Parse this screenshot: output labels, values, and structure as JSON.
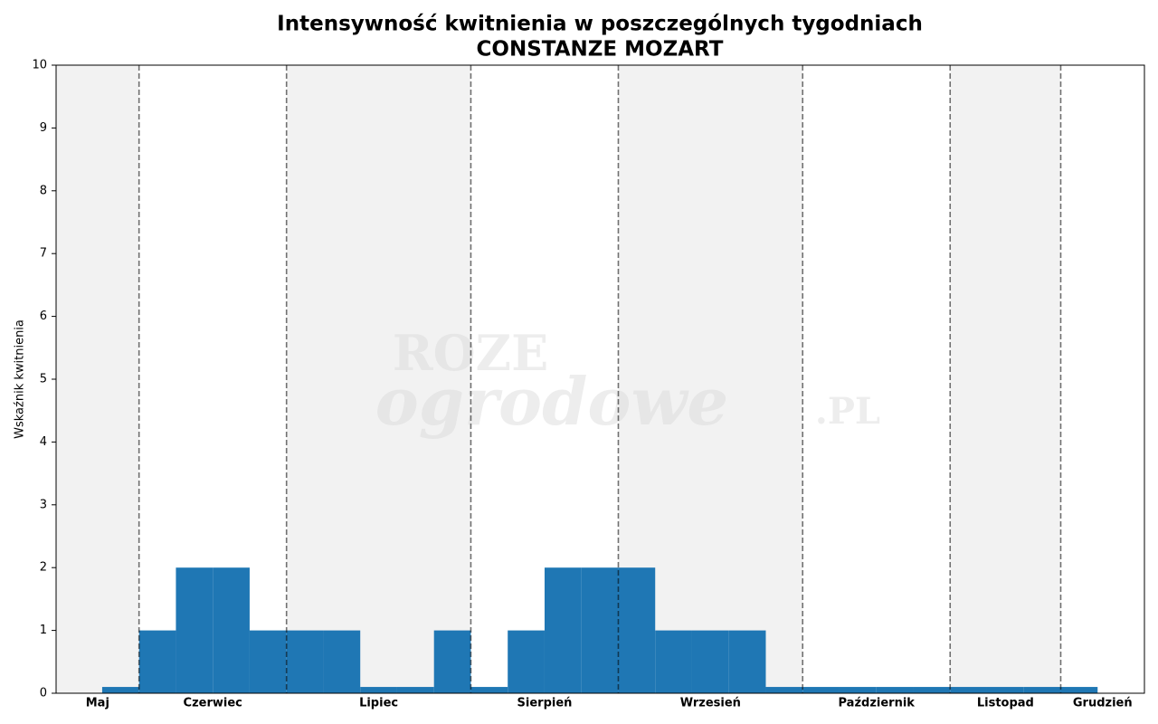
{
  "chart_data": {
    "type": "histogram",
    "title": "Intensywność kwitnienia w poszczególnych tygodniach",
    "subtitle": "CONSTANZE MOZART",
    "y_label": "Wskaźnik kwitnienia",
    "watermark": [
      "ROZE",
      "ogrodowe",
      ".PL"
    ],
    "bins": [
      0,
      1,
      2,
      3,
      4,
      5,
      6,
      7,
      8,
      9,
      10,
      11,
      12,
      13,
      14,
      15,
      16,
      17,
      18,
      19,
      20,
      21,
      22,
      23,
      24,
      25,
      26,
      27
    ],
    "values": [
      0.1,
      1,
      2,
      2,
      1,
      1,
      1,
      0.1,
      0.1,
      1,
      0.1,
      1,
      2,
      2,
      2,
      1,
      1,
      1,
      0.1,
      0.1,
      0.1,
      0.1,
      0.1,
      0.1,
      0.1,
      0.1,
      0.1
    ],
    "color": "#1f77b4",
    "months": [
      "Maj",
      "Czerwiec",
      "Lipiec",
      "Sierpień",
      "Wrzesień",
      "Październik",
      "Listopad",
      "Grudzień"
    ],
    "month_bounds": [
      1,
      5,
      10,
      14,
      19,
      23,
      26
    ],
    "shade_color": "#f2f2f2",
    "xlim": [
      -1.25,
      28.27
    ],
    "ylim": [
      0,
      10
    ],
    "yticks": [
      0,
      1,
      2,
      3,
      4,
      5,
      6,
      7,
      8,
      9,
      10
    ],
    "grid": false
  }
}
